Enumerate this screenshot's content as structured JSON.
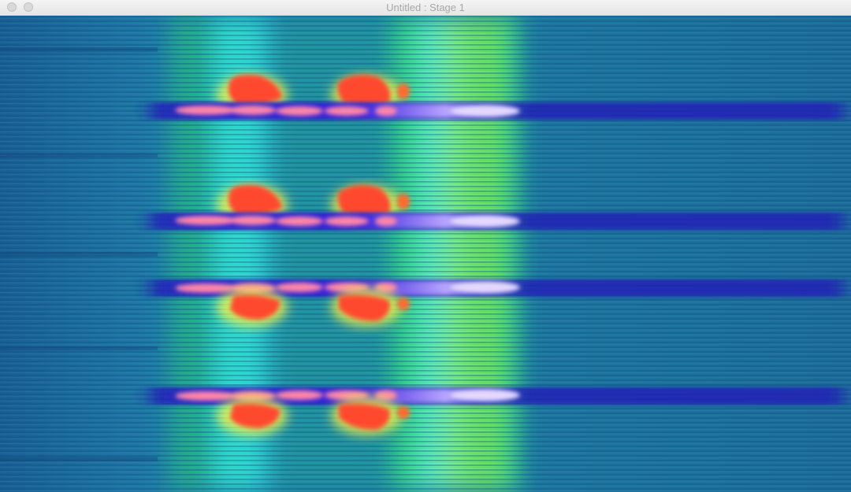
{
  "window": {
    "title": "Untitled : Stage 1"
  },
  "stage": {
    "content": "motion-smear-heatmap-visualization",
    "colors": {
      "background": "#1d6e9e",
      "cyan": "#2ef2f2",
      "green": "#2ee86a",
      "lime": "#9cf24a",
      "orange": "#ff5a2e",
      "red": "#f0442a",
      "pink": "#ff8fb0",
      "indigo": "#2a1fd6",
      "lavender": "#d8c8ff"
    }
  }
}
